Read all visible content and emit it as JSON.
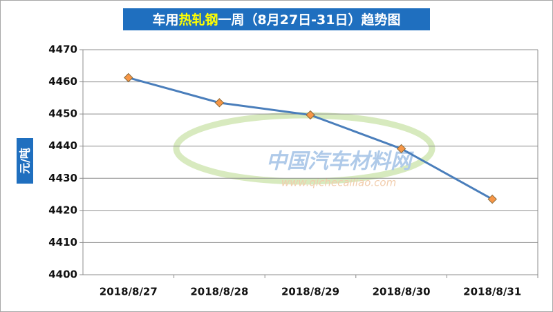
{
  "chart_data": {
    "type": "line",
    "title_parts": [
      "车用",
      "热轧钢",
      "一周（8月27日-31日）趋势图"
    ],
    "y_label": "元/吨",
    "watermark": [
      "中国汽车材料网",
      "www.qichecailiao.com"
    ],
    "categories": [
      "2018/8/27",
      "2018/8/28",
      "2018/8/29",
      "2018/8/30",
      "2018/8/31"
    ],
    "values": [
      4461.3,
      4453.5,
      4449.7,
      4439.2,
      4423.5
    ],
    "color": "#4a7ebb",
    "marker_color": "#f79646",
    "ylim": [
      4400,
      4470
    ],
    "yticks": [
      4400,
      4410,
      4420,
      4430,
      4440,
      4450,
      4460,
      4470
    ],
    "grid": true
  }
}
